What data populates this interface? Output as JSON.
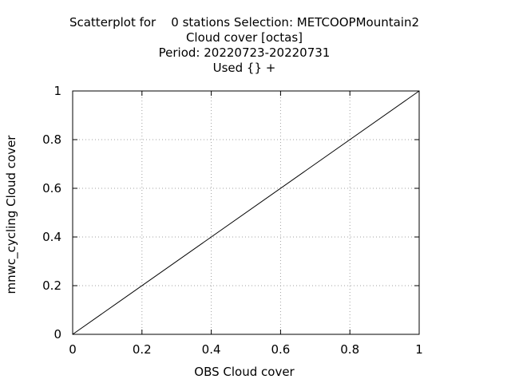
{
  "chart_data": {
    "type": "scatter",
    "title_lines": [
      "Scatterplot for    0 stations Selection: METCOOPMountain2",
      "Cloud cover [octas]",
      "Period: 20220723-20220731",
      "Used {} +"
    ],
    "xlabel": "OBS Cloud cover",
    "ylabel": "mnwc_cycling Cloud cover",
    "xlim": [
      0,
      1
    ],
    "ylim": [
      0,
      1
    ],
    "xticks": [
      "0",
      "0.2",
      "0.4",
      "0.6",
      "0.8",
      "1"
    ],
    "yticks": [
      "0",
      "0.2",
      "0.4",
      "0.6",
      "0.8",
      "1"
    ],
    "grid": true,
    "grid_style": "dotted",
    "reference_line": {
      "x": [
        0,
        1
      ],
      "y": [
        0,
        1
      ]
    },
    "series": [
      {
        "values": []
      }
    ],
    "colors": {
      "line": "#000000",
      "grid": "#a0a0a0",
      "background": "#ffffff"
    }
  }
}
